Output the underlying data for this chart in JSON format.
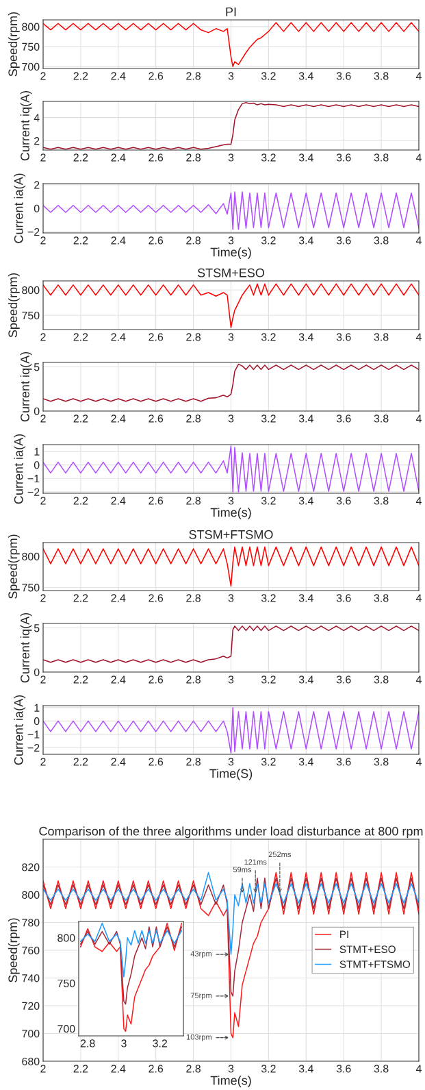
{
  "chart_data": [
    {
      "type": "line",
      "title": "PI",
      "ylabel": "Speed(rpm)",
      "grid": true,
      "xlim": [
        2,
        4
      ],
      "xticks": [
        2,
        2.2,
        2.4,
        2.6,
        2.8,
        3,
        3.2,
        3.4,
        3.6,
        3.8,
        4
      ],
      "ylim": [
        695,
        817
      ],
      "yticks": [
        700,
        750,
        800
      ],
      "x": [
        2,
        2.04,
        2.08,
        2.12,
        2.16,
        2.2,
        2.24,
        2.28,
        2.32,
        2.36,
        2.4,
        2.44,
        2.48,
        2.52,
        2.56,
        2.6,
        2.64,
        2.68,
        2.72,
        2.76,
        2.8,
        2.84,
        2.88,
        2.92,
        2.96,
        2.98,
        3,
        3.01,
        3.02,
        3.04,
        3.06,
        3.08,
        3.1,
        3.12,
        3.14,
        3.16,
        3.18,
        3.2,
        3.24,
        3.28,
        3.32,
        3.36,
        3.4,
        3.44,
        3.48,
        3.52,
        3.56,
        3.6,
        3.64,
        3.68,
        3.72,
        3.76,
        3.8,
        3.84,
        3.88,
        3.92,
        3.96,
        4
      ],
      "series": [
        {
          "color": "#ff0000",
          "values": [
            808,
            792,
            808,
            792,
            808,
            792,
            808,
            792,
            808,
            792,
            808,
            792,
            808,
            792,
            808,
            792,
            808,
            792,
            808,
            792,
            808,
            792,
            785,
            795,
            788,
            795,
            725,
            700,
            712,
            705,
            720,
            735,
            748,
            758,
            768,
            772,
            780,
            788,
            810,
            788,
            810,
            788,
            810,
            788,
            810,
            788,
            810,
            788,
            810,
            788,
            810,
            788,
            810,
            788,
            810,
            788,
            810,
            788
          ]
        }
      ]
    },
    {
      "type": "line",
      "ylabel": "Current iq(A)",
      "grid": true,
      "xlim": [
        2,
        4
      ],
      "xticks": [
        2,
        2.2,
        2.4,
        2.6,
        2.8,
        3,
        3.2,
        3.4,
        3.6,
        3.8,
        4
      ],
      "ylim": [
        1.2,
        5.4
      ],
      "yticks": [
        2,
        4
      ],
      "x": [
        2,
        2.04,
        2.08,
        2.12,
        2.16,
        2.2,
        2.24,
        2.28,
        2.32,
        2.36,
        2.4,
        2.44,
        2.48,
        2.52,
        2.56,
        2.6,
        2.64,
        2.68,
        2.72,
        2.76,
        2.8,
        2.84,
        2.88,
        2.92,
        2.96,
        2.98,
        3,
        3.01,
        3.02,
        3.04,
        3.06,
        3.08,
        3.1,
        3.12,
        3.14,
        3.16,
        3.18,
        3.2,
        3.24,
        3.28,
        3.32,
        3.36,
        3.4,
        3.44,
        3.48,
        3.52,
        3.56,
        3.6,
        3.64,
        3.68,
        3.72,
        3.76,
        3.8,
        3.84,
        3.88,
        3.92,
        3.96,
        4
      ],
      "series": [
        {
          "color": "#a0122a",
          "values": [
            1.42,
            1.28,
            1.42,
            1.28,
            1.42,
            1.28,
            1.42,
            1.28,
            1.42,
            1.28,
            1.42,
            1.28,
            1.42,
            1.28,
            1.42,
            1.28,
            1.42,
            1.28,
            1.42,
            1.28,
            1.42,
            1.28,
            1.35,
            1.5,
            1.65,
            1.7,
            1.7,
            2.5,
            3.8,
            4.7,
            5.2,
            5.3,
            5.2,
            5.25,
            5.1,
            5.2,
            5.1,
            5.15,
            5.1,
            4.95,
            5.1,
            4.95,
            5.1,
            4.95,
            5.1,
            4.95,
            5.1,
            4.95,
            5.1,
            4.95,
            5.1,
            4.95,
            5.1,
            4.95,
            5.1,
            4.95,
            5.1,
            4.95
          ]
        }
      ]
    },
    {
      "type": "line",
      "ylabel": "Current ia(A)",
      "xlabel": "Time(s)",
      "grid": true,
      "xlim": [
        2,
        4
      ],
      "xticks": [
        2,
        2.2,
        2.4,
        2.6,
        2.8,
        3,
        3.2,
        3.4,
        3.6,
        3.8,
        4
      ],
      "ylim": [
        -2.1,
        2.1
      ],
      "yticks": [
        -2,
        0,
        2
      ],
      "x": [
        2,
        2.04,
        2.08,
        2.12,
        2.16,
        2.2,
        2.24,
        2.28,
        2.32,
        2.36,
        2.4,
        2.44,
        2.48,
        2.52,
        2.56,
        2.6,
        2.64,
        2.68,
        2.72,
        2.76,
        2.8,
        2.84,
        2.88,
        2.92,
        2.96,
        2.98,
        3,
        3.01,
        3.02,
        3.04,
        3.06,
        3.08,
        3.1,
        3.12,
        3.14,
        3.16,
        3.18,
        3.2,
        3.24,
        3.28,
        3.32,
        3.36,
        3.4,
        3.44,
        3.48,
        3.52,
        3.56,
        3.6,
        3.64,
        3.68,
        3.72,
        3.76,
        3.8,
        3.84,
        3.88,
        3.92,
        3.96,
        4
      ],
      "series": [
        {
          "color": "#b04cff",
          "values": [
            0.25,
            -0.35,
            0.25,
            -0.35,
            0.25,
            -0.35,
            0.25,
            -0.35,
            0.25,
            -0.35,
            0.25,
            -0.35,
            0.25,
            -0.35,
            0.25,
            -0.35,
            0.25,
            -0.35,
            0.25,
            -0.35,
            0.25,
            -0.35,
            0.3,
            -0.45,
            0.4,
            -0.5,
            1.3,
            -1.8,
            1.4,
            -1.8,
            1.4,
            -1.7,
            1.3,
            -1.65,
            1.3,
            -1.65,
            1.3,
            -1.65,
            1.3,
            -1.65,
            1.3,
            -1.65,
            1.3,
            -1.65,
            1.3,
            -1.65,
            1.3,
            -1.65,
            1.3,
            -1.65,
            1.3,
            -1.65,
            1.3,
            -1.65,
            1.3,
            -1.65,
            1.3,
            -1.65
          ]
        }
      ]
    },
    {
      "type": "line",
      "title": "STSM+ESO",
      "ylabel": "Speed(rpm)",
      "grid": true,
      "xlim": [
        2,
        4
      ],
      "xticks": [
        2,
        2.2,
        2.4,
        2.6,
        2.8,
        3,
        3.2,
        3.4,
        3.6,
        3.8,
        4
      ],
      "ylim": [
        722,
        818
      ],
      "yticks": [
        750,
        800
      ],
      "x": [
        2,
        2.04,
        2.08,
        2.12,
        2.16,
        2.2,
        2.24,
        2.28,
        2.32,
        2.36,
        2.4,
        2.44,
        2.48,
        2.52,
        2.56,
        2.6,
        2.64,
        2.68,
        2.72,
        2.76,
        2.8,
        2.84,
        2.88,
        2.92,
        2.96,
        2.98,
        3,
        3.01,
        3.02,
        3.04,
        3.06,
        3.08,
        3.1,
        3.12,
        3.14,
        3.16,
        3.18,
        3.2,
        3.24,
        3.28,
        3.32,
        3.36,
        3.4,
        3.44,
        3.48,
        3.52,
        3.56,
        3.6,
        3.64,
        3.68,
        3.72,
        3.76,
        3.8,
        3.84,
        3.88,
        3.92,
        3.96,
        4
      ],
      "series": [
        {
          "color": "#ff0000",
          "values": [
            810,
            790,
            810,
            790,
            810,
            790,
            810,
            790,
            810,
            790,
            810,
            790,
            810,
            790,
            810,
            790,
            810,
            790,
            810,
            790,
            810,
            790,
            795,
            788,
            795,
            790,
            726,
            745,
            760,
            775,
            790,
            800,
            810,
            790,
            812,
            790,
            812,
            790,
            812,
            790,
            812,
            790,
            812,
            790,
            812,
            790,
            812,
            790,
            812,
            790,
            812,
            790,
            812,
            790,
            812,
            790,
            812,
            790
          ]
        }
      ]
    },
    {
      "type": "line",
      "ylabel": "Current iq(A)",
      "grid": true,
      "xlim": [
        2,
        4
      ],
      "xticks": [
        2,
        2.2,
        2.4,
        2.6,
        2.8,
        3,
        3.2,
        3.4,
        3.6,
        3.8,
        4
      ],
      "ylim": [
        0,
        5.5
      ],
      "yticks": [
        0,
        5
      ],
      "x": [
        2,
        2.04,
        2.08,
        2.12,
        2.16,
        2.2,
        2.24,
        2.28,
        2.32,
        2.36,
        2.4,
        2.44,
        2.48,
        2.52,
        2.56,
        2.6,
        2.64,
        2.68,
        2.72,
        2.76,
        2.8,
        2.84,
        2.88,
        2.92,
        2.96,
        2.98,
        3,
        3.01,
        3.02,
        3.04,
        3.06,
        3.08,
        3.1,
        3.12,
        3.14,
        3.16,
        3.18,
        3.2,
        3.24,
        3.28,
        3.32,
        3.36,
        3.4,
        3.44,
        3.48,
        3.52,
        3.56,
        3.6,
        3.64,
        3.68,
        3.72,
        3.76,
        3.8,
        3.84,
        3.88,
        3.92,
        3.96,
        4
      ],
      "series": [
        {
          "color": "#a0122a",
          "values": [
            1.4,
            1.1,
            1.4,
            1.1,
            1.4,
            1.1,
            1.4,
            1.1,
            1.4,
            1.1,
            1.4,
            1.1,
            1.4,
            1.1,
            1.4,
            1.1,
            1.4,
            1.1,
            1.4,
            1.1,
            1.4,
            1.1,
            1.45,
            1.5,
            1.8,
            1.6,
            1.9,
            3,
            4.5,
            5.3,
            5.1,
            4.7,
            5.2,
            4.7,
            5.2,
            4.7,
            5.2,
            4.7,
            5.2,
            4.7,
            5.2,
            4.7,
            5.2,
            4.7,
            5.2,
            4.7,
            5.2,
            4.7,
            5.2,
            4.7,
            5.2,
            4.7,
            5.2,
            4.7,
            5.2,
            4.7,
            5.2,
            4.7
          ]
        }
      ]
    },
    {
      "type": "line",
      "ylabel": "Current ia(A)",
      "xlabel": "Time(s)",
      "grid": true,
      "xlim": [
        2,
        4
      ],
      "xticks": [
        2,
        2.2,
        2.4,
        2.6,
        2.8,
        3,
        3.2,
        3.4,
        3.6,
        3.8,
        4
      ],
      "ylim": [
        -2.1,
        1.5
      ],
      "yticks": [
        -2,
        -1,
        0,
        1
      ],
      "x": [
        2,
        2.04,
        2.08,
        2.12,
        2.16,
        2.2,
        2.24,
        2.28,
        2.32,
        2.36,
        2.4,
        2.44,
        2.48,
        2.52,
        2.56,
        2.6,
        2.64,
        2.68,
        2.72,
        2.76,
        2.8,
        2.84,
        2.88,
        2.92,
        2.96,
        2.98,
        3,
        3.01,
        3.02,
        3.04,
        3.06,
        3.08,
        3.1,
        3.12,
        3.14,
        3.16,
        3.18,
        3.2,
        3.24,
        3.28,
        3.32,
        3.36,
        3.4,
        3.44,
        3.48,
        3.52,
        3.56,
        3.6,
        3.64,
        3.68,
        3.72,
        3.76,
        3.8,
        3.84,
        3.88,
        3.92,
        3.96,
        4
      ],
      "series": [
        {
          "color": "#b04cff",
          "values": [
            0.2,
            -0.6,
            0.2,
            -0.6,
            0.2,
            -0.6,
            0.2,
            -0.6,
            0.2,
            -0.6,
            0.2,
            -0.6,
            0.2,
            -0.6,
            0.2,
            -0.6,
            0.2,
            -0.6,
            0.2,
            -0.6,
            0.2,
            -0.6,
            0.2,
            -0.6,
            0.3,
            -0.6,
            1.4,
            -2,
            1.3,
            -2,
            0.9,
            -1.95,
            0.85,
            -1.95,
            0.85,
            -1.95,
            0.85,
            -1.95,
            0.85,
            -1.95,
            0.85,
            -1.95,
            0.85,
            -1.95,
            0.85,
            -1.95,
            0.85,
            -1.95,
            0.85,
            -1.95,
            0.85,
            -1.95,
            0.85,
            -1.95,
            0.85,
            -1.95,
            0.85,
            -1.95
          ]
        }
      ]
    },
    {
      "type": "line",
      "title": "STSM+FTSMO",
      "ylabel": "Speed(rpm)",
      "grid": true,
      "xlim": [
        2,
        4
      ],
      "xticks": [
        2,
        2.2,
        2.4,
        2.6,
        2.8,
        3,
        3.2,
        3.4,
        3.6,
        3.8,
        4
      ],
      "ylim": [
        745,
        822
      ],
      "yticks": [
        750,
        800
      ],
      "x": [
        2,
        2.04,
        2.08,
        2.12,
        2.16,
        2.2,
        2.24,
        2.28,
        2.32,
        2.36,
        2.4,
        2.44,
        2.48,
        2.52,
        2.56,
        2.6,
        2.64,
        2.68,
        2.72,
        2.76,
        2.8,
        2.84,
        2.88,
        2.92,
        2.96,
        2.98,
        3,
        3.01,
        3.02,
        3.04,
        3.06,
        3.08,
        3.1,
        3.12,
        3.14,
        3.16,
        3.18,
        3.2,
        3.24,
        3.28,
        3.32,
        3.36,
        3.4,
        3.44,
        3.48,
        3.52,
        3.56,
        3.6,
        3.64,
        3.68,
        3.72,
        3.76,
        3.8,
        3.84,
        3.88,
        3.92,
        3.96,
        4
      ],
      "series": [
        {
          "color": "#ff0000",
          "values": [
            812,
            788,
            812,
            788,
            812,
            788,
            812,
            788,
            812,
            788,
            812,
            788,
            812,
            788,
            812,
            788,
            812,
            788,
            812,
            788,
            812,
            788,
            812,
            788,
            812,
            788,
            752,
            790,
            815,
            785,
            815,
            785,
            815,
            785,
            815,
            785,
            815,
            785,
            815,
            785,
            815,
            785,
            815,
            785,
            815,
            785,
            815,
            785,
            815,
            785,
            815,
            785,
            815,
            785,
            815,
            785,
            815,
            785
          ]
        }
      ]
    },
    {
      "type": "line",
      "ylabel": "Current iq(A)",
      "grid": true,
      "xlim": [
        2,
        4
      ],
      "xticks": [
        2,
        2.2,
        2.4,
        2.6,
        2.8,
        3,
        3.2,
        3.4,
        3.6,
        3.8,
        4
      ],
      "ylim": [
        0,
        5.5
      ],
      "yticks": [
        0,
        5
      ],
      "x": [
        2,
        2.04,
        2.08,
        2.12,
        2.16,
        2.2,
        2.24,
        2.28,
        2.32,
        2.36,
        2.4,
        2.44,
        2.48,
        2.52,
        2.56,
        2.6,
        2.64,
        2.68,
        2.72,
        2.76,
        2.8,
        2.84,
        2.88,
        2.92,
        2.96,
        2.98,
        3,
        3.01,
        3.02,
        3.04,
        3.06,
        3.08,
        3.1,
        3.12,
        3.14,
        3.16,
        3.18,
        3.2,
        3.24,
        3.28,
        3.32,
        3.36,
        3.4,
        3.44,
        3.48,
        3.52,
        3.56,
        3.6,
        3.64,
        3.68,
        3.72,
        3.76,
        3.8,
        3.84,
        3.88,
        3.92,
        3.96,
        4
      ],
      "series": [
        {
          "color": "#a0122a",
          "values": [
            1.4,
            1.1,
            1.4,
            1.1,
            1.4,
            1.1,
            1.4,
            1.1,
            1.4,
            1.1,
            1.4,
            1.1,
            1.4,
            1.1,
            1.4,
            1.1,
            1.4,
            1.1,
            1.4,
            1.1,
            1.4,
            1.1,
            1.4,
            1.5,
            1.8,
            1.6,
            1.8,
            4.8,
            5.2,
            4.7,
            5.2,
            4.7,
            5.2,
            4.7,
            5.2,
            4.7,
            5.2,
            4.7,
            5.2,
            4.7,
            5.2,
            4.7,
            5.2,
            4.7,
            5.2,
            4.7,
            5.2,
            4.7,
            5.2,
            4.7,
            5.2,
            4.7,
            5.2,
            4.7,
            5.2,
            4.7,
            5.2,
            4.7
          ]
        }
      ]
    },
    {
      "type": "line",
      "ylabel": "Current ia(A)",
      "xlabel": "Time(S)",
      "grid": true,
      "xlim": [
        2,
        4
      ],
      "xticks": [
        2,
        2.2,
        2.4,
        2.6,
        2.8,
        3,
        3.2,
        3.4,
        3.6,
        3.8,
        4
      ],
      "ylim": [
        -2.5,
        1.15
      ],
      "yticks": [
        -2,
        -1,
        0,
        1
      ],
      "x": [
        2,
        2.04,
        2.08,
        2.12,
        2.16,
        2.2,
        2.24,
        2.28,
        2.32,
        2.36,
        2.4,
        2.44,
        2.48,
        2.52,
        2.56,
        2.6,
        2.64,
        2.68,
        2.72,
        2.76,
        2.8,
        2.84,
        2.88,
        2.92,
        2.96,
        2.98,
        3,
        3.01,
        3.02,
        3.04,
        3.06,
        3.08,
        3.1,
        3.12,
        3.14,
        3.16,
        3.18,
        3.2,
        3.24,
        3.28,
        3.32,
        3.36,
        3.4,
        3.44,
        3.48,
        3.52,
        3.56,
        3.6,
        3.64,
        3.68,
        3.72,
        3.76,
        3.8,
        3.84,
        3.88,
        3.92,
        3.96,
        4
      ],
      "series": [
        {
          "color": "#b04cff",
          "values": [
            0,
            -0.8,
            0,
            -0.8,
            0,
            -0.8,
            0,
            -0.8,
            0,
            -0.8,
            0,
            -0.8,
            0,
            -0.8,
            0,
            -0.8,
            0,
            -0.8,
            0,
            -0.8,
            0,
            -0.8,
            0,
            -0.8,
            0,
            -0.8,
            -2.4,
            1,
            -2.3,
            0.7,
            -2.1,
            0.7,
            -2.1,
            0.7,
            -2.1,
            0.7,
            -2.1,
            0.7,
            -2.1,
            0.7,
            -2.1,
            0.7,
            -2.1,
            0.7,
            -2.1,
            0.7,
            -2.1,
            0.7,
            -2.1,
            0.7,
            -2.1,
            0.7,
            -2.1,
            0.7,
            -2.1,
            0.7,
            -2.1,
            0.7
          ]
        }
      ]
    },
    {
      "type": "line",
      "title": "Comparison of the three algorithms under load disturbance at 800 rpm",
      "ylabel": "Speed(rpm)",
      "xlabel": "Time(s)",
      "grid": true,
      "legend": "right",
      "xlim": [
        2,
        4
      ],
      "xticks": [
        2,
        2.2,
        2.4,
        2.6,
        2.8,
        3,
        3.2,
        3.4,
        3.6,
        3.8,
        4
      ],
      "ylim": [
        680,
        840
      ],
      "yticks": [
        680,
        700,
        720,
        740,
        760,
        780,
        800,
        820
      ],
      "x": [
        2,
        2.04,
        2.08,
        2.12,
        2.16,
        2.2,
        2.24,
        2.28,
        2.32,
        2.36,
        2.4,
        2.44,
        2.48,
        2.52,
        2.56,
        2.6,
        2.64,
        2.68,
        2.72,
        2.76,
        2.8,
        2.84,
        2.88,
        2.92,
        2.96,
        2.98,
        3,
        3.01,
        3.02,
        3.04,
        3.06,
        3.08,
        3.1,
        3.12,
        3.14,
        3.16,
        3.18,
        3.2,
        3.24,
        3.28,
        3.32,
        3.36,
        3.4,
        3.44,
        3.48,
        3.52,
        3.56,
        3.6,
        3.64,
        3.68,
        3.72,
        3.76,
        3.8,
        3.84,
        3.88,
        3.92,
        3.96,
        4
      ],
      "series": [
        {
          "name": "PI",
          "color": "#ff1a1a",
          "values": [
            810,
            790,
            810,
            790,
            810,
            790,
            810,
            790,
            810,
            790,
            810,
            790,
            810,
            790,
            810,
            790,
            810,
            790,
            810,
            790,
            810,
            790,
            785,
            795,
            785,
            790,
            700,
            697,
            715,
            705,
            735,
            745,
            755,
            765,
            770,
            780,
            785,
            790,
            816,
            786,
            816,
            786,
            816,
            786,
            816,
            786,
            816,
            786,
            816,
            786,
            816,
            786,
            816,
            786,
            816,
            786,
            816,
            786
          ]
        },
        {
          "name": "STMT+ESO",
          "color": "#a52a3a",
          "values": [
            807,
            793,
            807,
            793,
            807,
            793,
            807,
            793,
            807,
            793,
            807,
            793,
            807,
            793,
            807,
            793,
            807,
            793,
            807,
            793,
            807,
            793,
            807,
            793,
            807,
            793,
            730,
            727,
            745,
            760,
            780,
            790,
            800,
            788,
            812,
            790,
            812,
            790,
            812,
            790,
            812,
            790,
            812,
            790,
            812,
            790,
            812,
            790,
            812,
            790,
            812,
            790,
            812,
            790,
            812,
            790,
            812,
            790
          ]
        },
        {
          "name": "STMT+FTSMO",
          "color": "#1e9bff",
          "values": [
            804,
            796,
            804,
            796,
            804,
            796,
            804,
            796,
            804,
            796,
            804,
            796,
            804,
            796,
            804,
            796,
            804,
            796,
            804,
            796,
            804,
            796,
            816,
            796,
            804,
            796,
            757,
            775,
            800,
            792,
            808,
            794,
            808,
            794,
            808,
            794,
            808,
            794,
            808,
            794,
            808,
            794,
            808,
            794,
            808,
            794,
            808,
            794,
            808,
            794,
            808,
            794,
            808,
            794,
            808,
            794,
            808,
            794
          ]
        }
      ],
      "annotations": [
        {
          "text": "59ms",
          "x": 3.06,
          "y": 800
        },
        {
          "text": "121ms",
          "x": 3.13,
          "y": 800
        },
        {
          "text": "252ms",
          "x": 3.26,
          "y": 800
        },
        {
          "text": "43rpm",
          "x": 3.0,
          "y": 757
        },
        {
          "text": "75rpm",
          "x": 3.0,
          "y": 727
        },
        {
          "text": "103rpm",
          "x": 3.0,
          "y": 697
        }
      ]
    },
    {
      "type": "line",
      "grid": false,
      "xlim": [
        2.75,
        3.33
      ],
      "xticks": [
        2.8,
        3,
        3.2
      ],
      "ylim": [
        692,
        818
      ],
      "yticks": [
        700,
        750,
        800
      ],
      "x": [
        2.76,
        2.8,
        2.84,
        2.88,
        2.92,
        2.96,
        2.98,
        3,
        3.01,
        3.02,
        3.04,
        3.06,
        3.08,
        3.1,
        3.12,
        3.14,
        3.16,
        3.18,
        3.2,
        3.24,
        3.28,
        3.32
      ],
      "series": [
        {
          "color": "#ff1a1a",
          "values": [
            790,
            810,
            790,
            785,
            795,
            785,
            790,
            700,
            697,
            715,
            705,
            735,
            745,
            755,
            765,
            770,
            780,
            785,
            790,
            816,
            786,
            816
          ]
        },
        {
          "color": "#a52a3a",
          "values": [
            793,
            807,
            793,
            807,
            793,
            807,
            793,
            730,
            727,
            745,
            760,
            780,
            790,
            800,
            788,
            812,
            790,
            812,
            790,
            812,
            790,
            812
          ]
        },
        {
          "color": "#1e9bff",
          "values": [
            796,
            804,
            796,
            816,
            796,
            804,
            796,
            757,
            775,
            800,
            792,
            808,
            794,
            808,
            794,
            808,
            794,
            808,
            794,
            808,
            794,
            808
          ]
        }
      ]
    }
  ]
}
